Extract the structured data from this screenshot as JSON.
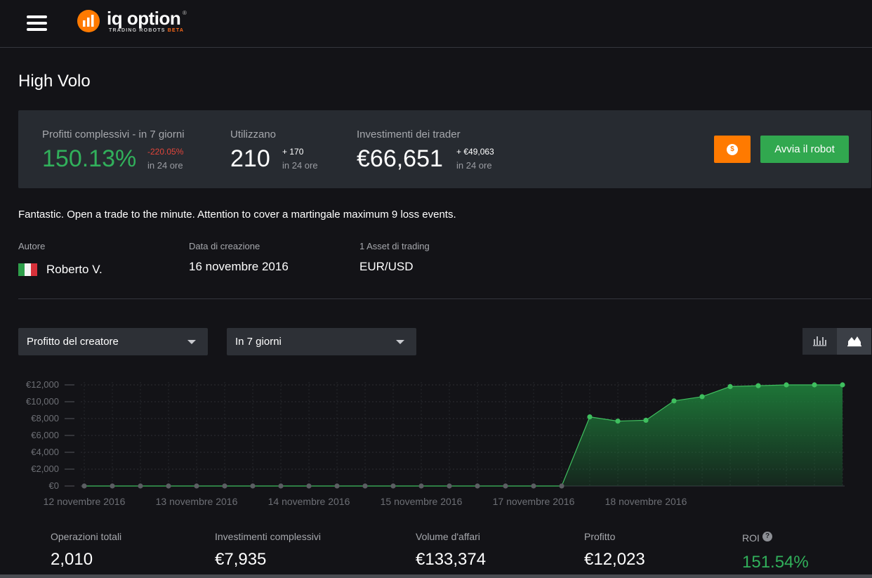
{
  "header": {
    "menu_icon": "hamburger-menu-icon",
    "logo_name": "iq option",
    "logo_reg": "®",
    "logo_subtitle": "TRADING ROBOTS",
    "logo_badge": "BETA",
    "brand_color": "#ff7a00"
  },
  "page": {
    "title": "High Volo"
  },
  "stats": {
    "profit": {
      "label": "Profitti complessivi - in 7 giorni",
      "value": "150.13%",
      "delta": "-220.05%",
      "sub": "in 24 ore"
    },
    "users": {
      "label": "Utilizzano",
      "value": "210",
      "delta": "+ 170",
      "sub": "in 24 ore"
    },
    "investments": {
      "label": "Investimenti dei trader",
      "value": "€66,651",
      "delta": "+ €49,063",
      "sub": "in 24 ore"
    }
  },
  "actions": {
    "coin_icon": "dollar-coin-icon",
    "coin_symbol": "$",
    "start_label": "Avvia il robot",
    "accent_orange": "#ff7a00",
    "accent_green": "#31a84f"
  },
  "description": "Fantastic. Open a trade to the minute. Attention to cover a martingale maximum 9 loss events.",
  "meta": {
    "author_label": "Autore",
    "author_name": "Roberto V.",
    "author_flag": "italy-flag-icon",
    "created_label": "Data di creazione",
    "created_value": "16 novembre 2016",
    "assets_label": "1 Asset di trading",
    "assets_value": "EUR/USD"
  },
  "filters": {
    "metric_select": "Profitto del creatore",
    "period_select": "In 7 giorni",
    "bar_toggle_icon": "bar-chart-icon",
    "area_toggle_icon": "area-chart-icon"
  },
  "chart_data": {
    "type": "area",
    "title": "",
    "xlabel": "",
    "ylabel": "",
    "y_ticks": [
      "€0",
      "€2,000",
      "€4,000",
      "€6,000",
      "€8,000",
      "€10,000",
      "€12,000"
    ],
    "ylim": [
      0,
      12000
    ],
    "x_tick_labels": [
      "12 novembre 2016",
      "13 novembre 2016",
      "14 novembre 2016",
      "15 novembre 2016",
      "17 novembre 2016",
      "18 novembre 2016"
    ],
    "x_tick_positions": [
      0,
      4,
      8,
      12,
      16,
      20
    ],
    "values": [
      0,
      0,
      0,
      0,
      0,
      0,
      0,
      0,
      0,
      0,
      0,
      0,
      0,
      0,
      0,
      0,
      0,
      0,
      8200,
      7700,
      7800,
      10100,
      10600,
      11800,
      11900,
      12000,
      12000,
      12000
    ],
    "grid": true,
    "fill_color": "#1e7a39",
    "line_color": "#3fbf5f"
  },
  "summary": {
    "total_ops_label": "Operazioni totali",
    "total_ops_value": "2,010",
    "total_invest_label": "Investimenti complessivi",
    "total_invest_value": "€7,935",
    "volume_label": "Volume d'affari",
    "volume_value": "€133,374",
    "profit_label": "Profitto",
    "profit_value": "€12,023",
    "roi_label": "ROI",
    "roi_value": "151.54%",
    "help_icon": "question-circle-icon",
    "help_symbol": "?"
  }
}
